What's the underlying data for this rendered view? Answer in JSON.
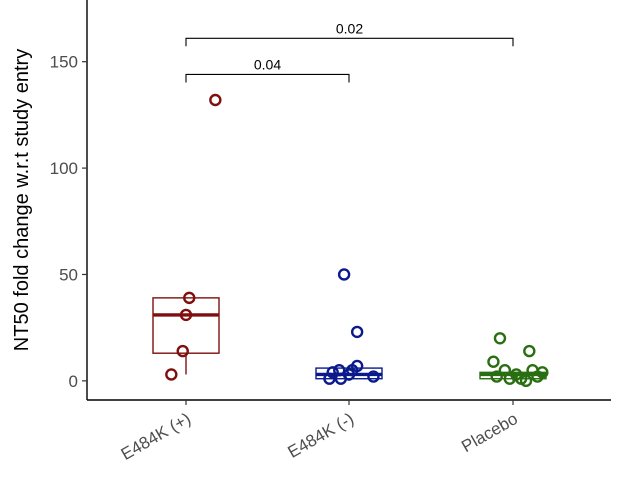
{
  "chart_data": {
    "type": "box",
    "title": "",
    "xlabel": "",
    "ylabel": "NT50 fold change w.r.t study entry",
    "ylim": [
      -9,
      179
    ],
    "yticks": [
      0,
      50,
      100,
      150
    ],
    "categories": [
      "E484K (+)",
      "E484K (-)",
      "Placebo"
    ],
    "grid": false,
    "legend": "none",
    "series": [
      {
        "category": "E484K (+)",
        "color": "#7f0f0f",
        "box": {
          "q1": 13,
          "median": 31,
          "q3": 39,
          "whisker_low": 3,
          "whisker_high": 39
        },
        "points": [
          {
            "x": 0.18,
            "y": 132
          },
          {
            "x": 0.02,
            "y": 39
          },
          {
            "x": 0.0,
            "y": 31
          },
          {
            "x": -0.02,
            "y": 14
          },
          {
            "x": -0.09,
            "y": 3
          }
        ]
      },
      {
        "category": "E484K (-)",
        "color": "#0a1a8c",
        "box": {
          "q1": 1,
          "median": 3,
          "q3": 6,
          "whisker_low": 0,
          "whisker_high": 7
        },
        "points": [
          {
            "x": -0.03,
            "y": 50
          },
          {
            "x": 0.05,
            "y": 23
          },
          {
            "x": 0.05,
            "y": 7
          },
          {
            "x": -0.06,
            "y": 5
          },
          {
            "x": -0.1,
            "y": 4
          },
          {
            "x": 0.02,
            "y": 5
          },
          {
            "x": 0.15,
            "y": 2
          },
          {
            "x": -0.12,
            "y": 1
          },
          {
            "x": -0.05,
            "y": 1
          },
          {
            "x": 0.0,
            "y": 3
          }
        ]
      },
      {
        "category": "Placebo",
        "color": "#2a6e12",
        "box": {
          "q1": 1,
          "median": 3,
          "q3": 4,
          "whisker_low": 0,
          "whisker_high": 5
        },
        "points": [
          {
            "x": -0.08,
            "y": 20
          },
          {
            "x": 0.1,
            "y": 14
          },
          {
            "x": -0.12,
            "y": 9
          },
          {
            "x": -0.05,
            "y": 5
          },
          {
            "x": 0.12,
            "y": 5
          },
          {
            "x": 0.02,
            "y": 3
          },
          {
            "x": -0.1,
            "y": 2
          },
          {
            "x": 0.05,
            "y": 1
          },
          {
            "x": 0.15,
            "y": 2
          },
          {
            "x": -0.02,
            "y": 1
          },
          {
            "x": 0.08,
            "y": 0
          },
          {
            "x": 0.18,
            "y": 4
          }
        ]
      }
    ],
    "comparisons": [
      {
        "from": "E484K (+)",
        "to": "E484K (-)",
        "y": 144,
        "label": "0.04"
      },
      {
        "from": "E484K (+)",
        "to": "Placebo",
        "y": 161,
        "label": "0.02"
      }
    ]
  }
}
